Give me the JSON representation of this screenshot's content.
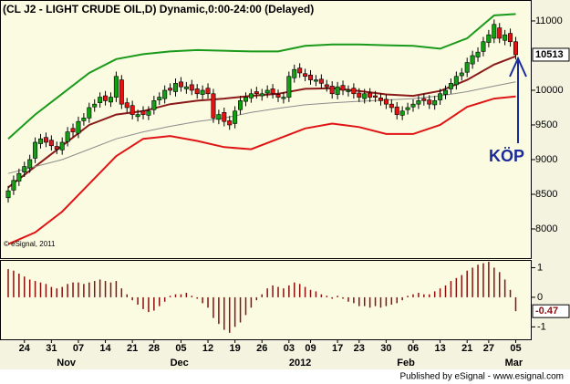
{
  "chart_data": {
    "type": "candlestick",
    "title": "(CL J2 - LIGHT CRUDE OIL,D) Dynamic,0:00-24:00 (Delayed)",
    "watermark": "© eSignal, 2011",
    "annotation": "KÖP",
    "footer": "Published by eSignal - www.esignal.com",
    "up_color": "#11a011",
    "down_color": "#e01414",
    "open": [
      8450,
      8560,
      8690,
      8820,
      8880,
      9020,
      9230,
      9320,
      9280,
      9190,
      9140,
      9260,
      9450,
      9380,
      9560,
      9600,
      9760,
      9820,
      9920,
      9830,
      9900,
      10150,
      9820,
      9780,
      9620,
      9700,
      9640,
      9720,
      9860,
      9880,
      10030,
      9980,
      10120,
      10020,
      10080,
      10020,
      9940,
      10030,
      9950,
      9580,
      9680,
      9560,
      9520,
      9720,
      9840,
      9890,
      9980,
      9920,
      9960,
      10020,
      9940,
      9880,
      9900,
      10180,
      10320,
      10240,
      10220,
      10130,
      10160,
      10080,
      10060,
      9940,
      10070,
      9980,
      10030,
      9960,
      9880,
      9960,
      9920,
      9890,
      9870,
      9800,
      9760,
      9640,
      9720,
      9760,
      9800,
      9880,
      9860,
      9790,
      9860,
      9940,
      10020,
      10080,
      10210,
      10260,
      10380,
      10480,
      10560,
      10690,
      10750,
      10900,
      10720,
      10820,
      10700
    ],
    "high": [
      8620,
      8770,
      8870,
      8970,
      9070,
      9320,
      9370,
      9390,
      9350,
      9260,
      9320,
      9470,
      9520,
      9620,
      9670,
      9820,
      9870,
      9970,
      9990,
      9970,
      10270,
      10220,
      9890,
      9850,
      9720,
      9770,
      9770,
      9920,
      9970,
      10070,
      10100,
      10170,
      10190,
      10120,
      10150,
      10090,
      10070,
      10100,
      10020,
      9720,
      9750,
      9630,
      9770,
      9920,
      9970,
      10020,
      10050,
      10020,
      10070,
      10090,
      10010,
      9970,
      10270,
      10370,
      10390,
      10310,
      10290,
      10220,
      10230,
      10150,
      10130,
      10120,
      10140,
      10070,
      10100,
      10030,
      10020,
      10030,
      9990,
      9960,
      9940,
      9870,
      9830,
      9770,
      9820,
      9870,
      9920,
      9950,
      9930,
      9920,
      10020,
      10070,
      10170,
      10270,
      10320,
      10470,
      10570,
      10620,
      10770,
      10870,
      11020,
      10970,
      10870,
      10890,
      10770
    ],
    "low": [
      8380,
      8490,
      8620,
      8750,
      8810,
      8950,
      9160,
      9180,
      9130,
      9080,
      9070,
      9190,
      9330,
      9310,
      9490,
      9530,
      9690,
      9750,
      9780,
      9760,
      9830,
      9730,
      9680,
      9580,
      9550,
      9580,
      9570,
      9650,
      9790,
      9810,
      9930,
      9910,
      9980,
      9950,
      9930,
      9880,
      9870,
      9880,
      9530,
      9510,
      9480,
      9430,
      9450,
      9650,
      9770,
      9820,
      9880,
      9850,
      9890,
      9880,
      9830,
      9810,
      9830,
      10110,
      10180,
      10130,
      10080,
      10060,
      10030,
      9980,
      9880,
      9870,
      9930,
      9910,
      9880,
      9830,
      9810,
      9830,
      9830,
      9780,
      9730,
      9680,
      9580,
      9570,
      9650,
      9690,
      9730,
      9780,
      9730,
      9720,
      9790,
      9870,
      9950,
      10010,
      10140,
      10190,
      10310,
      10410,
      10490,
      10620,
      10680,
      10680,
      10650,
      10630,
      10443
    ],
    "close": [
      8550,
      8700,
      8800,
      8900,
      9000,
      9250,
      9300,
      9250,
      9200,
      9150,
      9250,
      9400,
      9400,
      9550,
      9600,
      9750,
      9800,
      9900,
      9850,
      9900,
      10200,
      9800,
      9750,
      9650,
      9650,
      9650,
      9700,
      9850,
      9900,
      10000,
      10000,
      10100,
      10050,
      10050,
      10000,
      9950,
      10000,
      9950,
      9600,
      9650,
      9550,
      9500,
      9700,
      9850,
      9900,
      9950,
      9950,
      9950,
      10000,
      9950,
      9900,
      9900,
      10200,
      10300,
      10250,
      10200,
      10150,
      10150,
      10100,
      10050,
      9950,
      10050,
      10000,
      10000,
      9950,
      9900,
      9950,
      9900,
      9900,
      9850,
      9800,
      9750,
      9650,
      9700,
      9750,
      9800,
      9850,
      9850,
      9800,
      9850,
      9950,
      10000,
      10100,
      10200,
      10250,
      10400,
      10500,
      10550,
      10700,
      10800,
      10950,
      10750,
      10800,
      10700,
      10513
    ],
    "bands": [
      {
        "color": "#1a9a1a",
        "x": [
          0,
          5,
          10,
          15,
          20,
          25,
          30,
          35,
          40,
          45,
          50,
          55,
          60,
          65,
          70,
          75,
          80,
          85,
          90,
          94
        ],
        "values": [
          9300,
          9650,
          9950,
          10250,
          10450,
          10520,
          10560,
          10580,
          10570,
          10560,
          10560,
          10640,
          10660,
          10660,
          10650,
          10640,
          10600,
          10750,
          11080,
          11100
        ]
      },
      {
        "color": "#8b1a1a",
        "x": [
          0,
          5,
          10,
          15,
          20,
          25,
          30,
          35,
          40,
          45,
          50,
          55,
          60,
          65,
          70,
          75,
          80,
          85,
          90,
          94
        ],
        "values": [
          8600,
          8900,
          9200,
          9500,
          9650,
          9700,
          9800,
          9850,
          9880,
          9920,
          9950,
          10020,
          10030,
          9990,
          9940,
          9920,
          9990,
          10150,
          10370,
          10490
        ]
      },
      {
        "color": "#8c8c8c",
        "x": [
          0,
          5,
          10,
          15,
          20,
          25,
          30,
          35,
          40,
          45,
          50,
          55,
          60,
          65,
          70,
          75,
          80,
          85,
          90,
          94
        ],
        "values": [
          8800,
          8900,
          9000,
          9150,
          9300,
          9400,
          9480,
          9550,
          9600,
          9680,
          9740,
          9790,
          9820,
          9840,
          9860,
          9880,
          9920,
          9980,
          10060,
          10120
        ]
      },
      {
        "color": "#e01414",
        "x": [
          0,
          5,
          10,
          15,
          20,
          25,
          30,
          35,
          40,
          45,
          50,
          55,
          60,
          65,
          70,
          75,
          80,
          85,
          90,
          94
        ],
        "values": [
          7780,
          7950,
          8250,
          8650,
          9050,
          9300,
          9340,
          9270,
          9180,
          9150,
          9300,
          9450,
          9520,
          9470,
          9370,
          9370,
          9500,
          9760,
          9880,
          9910
        ]
      }
    ],
    "xlim": [
      -1.52,
      96.96
    ],
    "ylim": [
      7579,
      11302
    ],
    "yticks": [
      8000,
      8500,
      9000,
      9500,
      10000,
      11000
    ],
    "xticks": [
      {
        "value": 3,
        "label": "24"
      },
      {
        "value": 8,
        "label": "31"
      },
      {
        "value": 13,
        "label": "07"
      },
      {
        "value": 18,
        "label": "14"
      },
      {
        "value": 23,
        "label": "21"
      },
      {
        "value": 27,
        "label": "28"
      },
      {
        "value": 32,
        "label": "05"
      },
      {
        "value": 37,
        "label": "12"
      },
      {
        "value": 42,
        "label": "19"
      },
      {
        "value": 47,
        "label": "26"
      },
      {
        "value": 52,
        "label": "03"
      },
      {
        "value": 56,
        "label": "09"
      },
      {
        "value": 61,
        "label": "17"
      },
      {
        "value": 65,
        "label": "23"
      },
      {
        "value": 70,
        "label": "30"
      },
      {
        "value": 75,
        "label": "06"
      },
      {
        "value": 80,
        "label": "13"
      },
      {
        "value": 85,
        "label": "21"
      },
      {
        "value": 89,
        "label": "27"
      },
      {
        "value": 94,
        "label": "05"
      }
    ],
    "month_labels": [
      {
        "value": 9,
        "label": "Nov"
      },
      {
        "value": 30,
        "label": "Dec"
      },
      {
        "value": 52,
        "label": "2012"
      },
      {
        "value": 72,
        "label": "Feb"
      },
      {
        "value": 92,
        "label": "Mar"
      }
    ],
    "histogram": {
      "type": "bar",
      "color": "#8b0f0f",
      "values": [
        0.95,
        0.9,
        0.8,
        0.7,
        0.6,
        0.55,
        0.5,
        0.45,
        0.35,
        0.3,
        0.35,
        0.45,
        0.5,
        0.5,
        0.45,
        0.5,
        0.55,
        0.6,
        0.55,
        0.5,
        0.55,
        0.3,
        0.1,
        -0.1,
        -0.25,
        -0.4,
        -0.5,
        -0.45,
        -0.3,
        -0.15,
        0.05,
        0.1,
        0.1,
        0.15,
        0.05,
        -0.05,
        -0.2,
        -0.35,
        -0.7,
        -0.9,
        -1.1,
        -1.2,
        -1.0,
        -0.85,
        -0.6,
        -0.35,
        -0.1,
        0.1,
        0.3,
        0.4,
        0.35,
        0.3,
        0.4,
        0.5,
        0.45,
        0.35,
        0.25,
        0.2,
        0.1,
        0.05,
        -0.05,
        0.05,
        -0.05,
        -0.15,
        -0.2,
        -0.3,
        -0.3,
        -0.35,
        -0.3,
        -0.35,
        -0.3,
        -0.25,
        -0.2,
        -0.1,
        0.05,
        0.1,
        0.15,
        0.1,
        0.1,
        0.2,
        0.3,
        0.4,
        0.55,
        0.65,
        0.75,
        0.9,
        1.0,
        1.1,
        1.15,
        1.2,
        1.0,
        0.85,
        0.6,
        0.25,
        -0.47
      ],
      "ylim": [
        -1.42,
        1.23
      ],
      "yticks": [
        -1,
        0,
        1
      ]
    }
  }
}
